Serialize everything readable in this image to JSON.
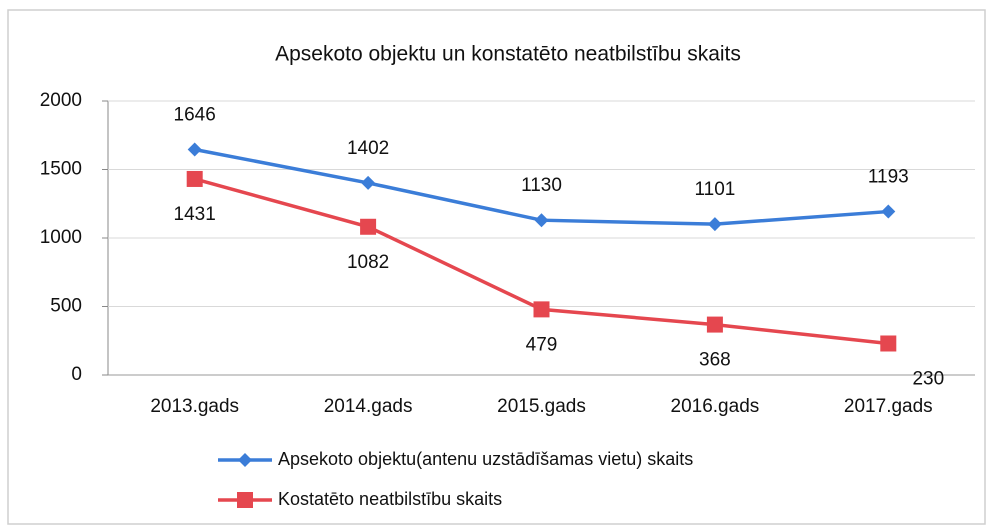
{
  "chart_data": {
    "type": "line",
    "title": "Apsekoto objektu un konstatēto neatbilstību skaits",
    "categories": [
      "2013.gads",
      "2014.gads",
      "2015.gads",
      "2016.gads",
      "2017.gads"
    ],
    "series": [
      {
        "name": "Apsekoto objektu(antenu uzstādīšamas vietu) skaits",
        "color": "#3b7dd8",
        "marker": "diamond",
        "values": [
          1646,
          1402,
          1130,
          1101,
          1193
        ]
      },
      {
        "name": "Kostatēto neatbilstību skaits",
        "color": "#e5474f",
        "marker": "square",
        "values": [
          1431,
          1082,
          479,
          368,
          230
        ]
      }
    ],
    "ylim": [
      0,
      2000
    ],
    "yticks": [
      0,
      500,
      1000,
      1500,
      2000
    ],
    "grid": true,
    "legend": "bottom"
  }
}
